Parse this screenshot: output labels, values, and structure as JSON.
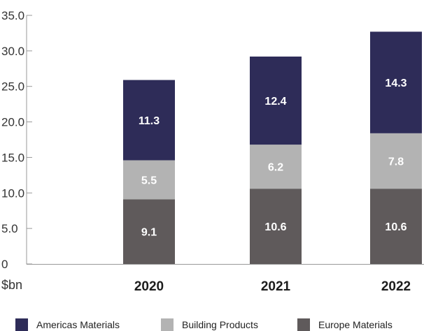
{
  "chart_data": {
    "type": "bar",
    "stacked": true,
    "categories": [
      "2020",
      "2021",
      "2022"
    ],
    "series": [
      {
        "name": "Europe Materials",
        "values": [
          9.1,
          10.6,
          10.6
        ],
        "color": "#5f5a5b"
      },
      {
        "name": "Building Products",
        "values": [
          5.5,
          6.2,
          7.8
        ],
        "color": "#b3b3b3"
      },
      {
        "name": "Americas Materials",
        "values": [
          11.3,
          12.4,
          14.3
        ],
        "color": "#2e2c58"
      }
    ],
    "legend_order": [
      "Americas Materials",
      "Building Products",
      "Europe Materials"
    ],
    "legend_position": "bottom",
    "y_ticks": [
      "0",
      "5.0",
      "10.0",
      "15.0",
      "20.0",
      "25.0",
      "30.0",
      "35.0"
    ],
    "ylim": [
      0,
      35
    ],
    "unit_label": "$bn",
    "grid": false,
    "title": "",
    "xlabel": "",
    "ylabel": ""
  }
}
